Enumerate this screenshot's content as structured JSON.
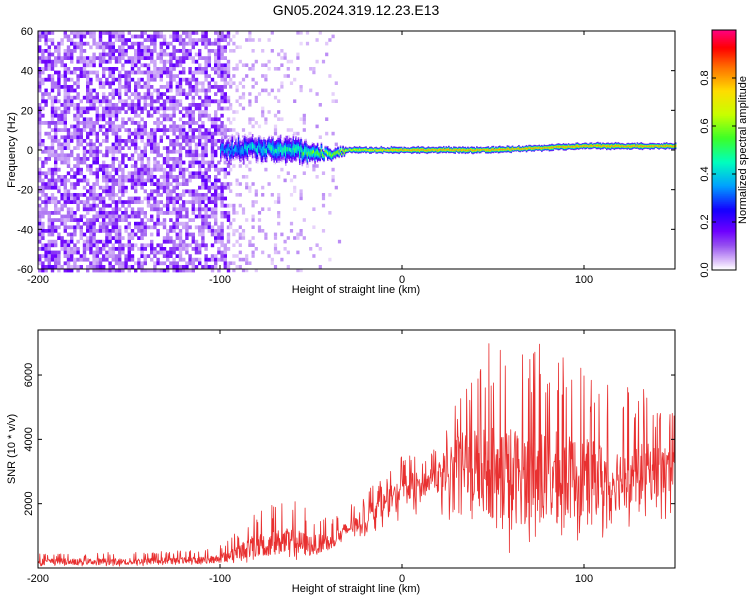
{
  "title": "GN05.2024.319.12.23.E13",
  "chart_data": [
    {
      "type": "heatmap",
      "xlabel": "Height of straight line (km)",
      "ylabel": "Frequency (Hz)",
      "xlim": [
        -200,
        150
      ],
      "ylim": [
        -60,
        60
      ],
      "xticks": [
        -200,
        -100,
        0,
        100
      ],
      "yticks": [
        -60,
        -40,
        -20,
        0,
        20,
        40,
        60
      ],
      "colorbar": {
        "label": "Normalized spectral amplitude",
        "range": [
          0,
          1
        ],
        "ticks": [
          0.0,
          0.2,
          0.4,
          0.6,
          0.8
        ],
        "tick_labels": [
          "0.0",
          "0.2",
          "0.4",
          "0.6",
          "0.8"
        ],
        "colors": [
          "#ffffff",
          "#c8a0f0",
          "#8000ff",
          "#0000ff",
          "#00c0ff",
          "#00ff80",
          "#80ff00",
          "#ffff00",
          "#ff8000",
          "#ff0000",
          "#ff0080"
        ]
      },
      "noise_region": {
        "x": [
          -200,
          -95
        ],
        "y": [
          -60,
          60
        ],
        "level": 0.12
      },
      "sparse_region": {
        "x": [
          -95,
          -35
        ],
        "y": [
          -60,
          60
        ],
        "level": 0.04
      },
      "signal_band": {
        "center_hz": [
          [
            -100,
            0
          ],
          [
            -80,
            1
          ],
          [
            -60,
            0
          ],
          [
            -40,
            -2
          ],
          [
            -30,
            0
          ],
          [
            0,
            0
          ],
          [
            50,
            0
          ],
          [
            100,
            2
          ],
          [
            150,
            2
          ]
        ],
        "halfwidth_hz": [
          [
            -100,
            5
          ],
          [
            -60,
            6
          ],
          [
            -40,
            3
          ],
          [
            -30,
            1.5
          ],
          [
            150,
            1.5
          ]
        ],
        "peak_amplitude": [
          [
            -100,
            0.4
          ],
          [
            -60,
            0.55
          ],
          [
            -30,
            0.8
          ],
          [
            0,
            0.95
          ],
          [
            150,
            0.95
          ]
        ]
      }
    },
    {
      "type": "line",
      "xlabel": "Height of straight line (km)",
      "ylabel": "SNR (10 * v/v)",
      "xlim": [
        -200,
        150
      ],
      "ylim": [
        0,
        7400
      ],
      "xticks": [
        -200,
        -100,
        0,
        100
      ],
      "yticks": [
        2000,
        4000,
        6000
      ],
      "color": "#e83030",
      "envelope": {
        "x": [
          -200,
          -150,
          -110,
          -100,
          -90,
          -80,
          -70,
          -60,
          -50,
          -40,
          -30,
          -20,
          -10,
          0,
          10,
          20,
          25,
          30,
          40,
          50,
          60,
          70,
          80,
          90,
          100,
          110,
          120,
          130,
          140,
          150
        ],
        "base": [
          200,
          200,
          250,
          300,
          500,
          700,
          800,
          800,
          700,
          800,
          1200,
          1600,
          2000,
          2400,
          2600,
          2800,
          3200,
          3300,
          3200,
          3000,
          2900,
          2800,
          2800,
          2800,
          2800,
          2800,
          2800,
          2900,
          3000,
          3000
        ],
        "top": [
          450,
          500,
          550,
          700,
          1200,
          1800,
          2000,
          2200,
          1800,
          1600,
          1900,
          2400,
          2800,
          3500,
          3600,
          3700,
          4800,
          5400,
          6500,
          7200,
          7000,
          6800,
          7200,
          6500,
          6200,
          5800,
          5500,
          5800,
          5000,
          5000
        ],
        "low": [
          50,
          50,
          100,
          100,
          150,
          200,
          300,
          200,
          300,
          500,
          800,
          1000,
          1300,
          1500,
          1700,
          1500,
          1200,
          1800,
          700,
          500,
          300,
          200,
          200,
          600,
          800,
          900,
          1000,
          1200,
          1400,
          1400
        ]
      }
    }
  ]
}
